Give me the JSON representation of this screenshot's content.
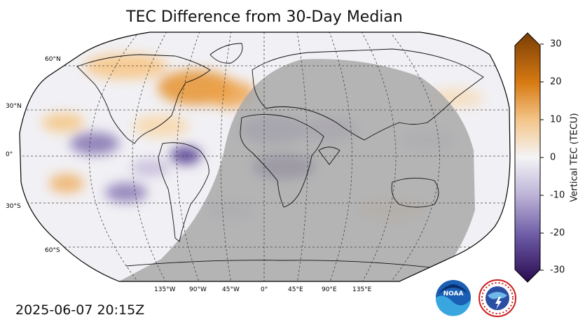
{
  "title": "TEC Difference from 30-Day Median",
  "timestamp": "2025-06-07 20:15Z",
  "colorbar": {
    "label": "Vertical TEC (TECU)",
    "ticks": [
      "30",
      "20",
      "10",
      "0",
      "-10",
      "-20",
      "-30"
    ],
    "colors": {
      "max": "#7a3d05",
      "high": "#e48a1b",
      "mid": "#f4f4f6",
      "low": "#8b7bb8",
      "min": "#2a0a4e"
    }
  },
  "map": {
    "lat_labels": [
      "60°N",
      "30°N",
      "0°",
      "30°S",
      "60°S"
    ],
    "lon_labels": [
      "135°W",
      "90°W",
      "45°W",
      "0°",
      "45°E",
      "90°E",
      "135°E"
    ],
    "night_shade_color": "#a9a9a9"
  },
  "logos": {
    "noaa_text": "NOAA",
    "nws_text": "NATIONAL WEATHER SERVICE"
  }
}
